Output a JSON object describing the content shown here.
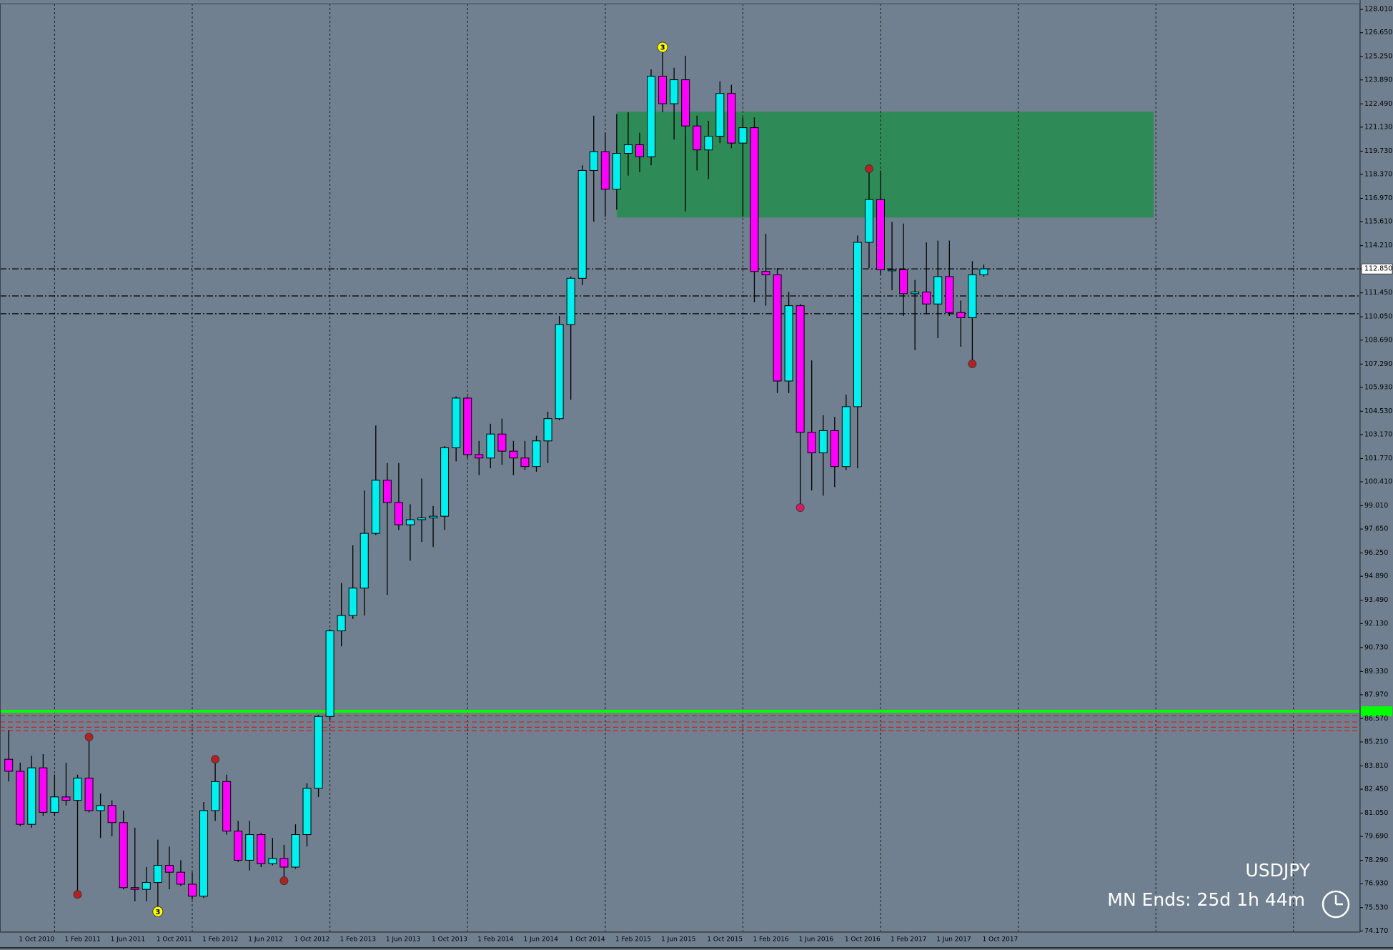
{
  "chart_data": {
    "type": "candlestick",
    "title": "USDJPY",
    "subtitle": "MN Ends: 25d 1h 44m",
    "x": [
      null,
      "1 Oct 2010",
      null,
      null,
      null,
      "1 Feb 2011",
      null,
      null,
      null,
      "1 Jun 2011",
      null,
      null,
      null,
      "1 Oct 2011",
      null,
      null,
      null,
      "1 Feb 2012",
      null,
      null,
      null,
      "1 Jun 2012",
      null,
      null,
      null,
      "1 Oct 2012",
      null,
      null,
      null,
      "1 Feb 2013",
      null,
      null,
      null,
      "1 Jun 2013",
      null,
      null,
      null,
      "1 Oct 2013",
      null,
      null,
      null,
      "1 Feb 2014",
      null,
      null,
      null,
      "1 Jun 2014",
      null,
      null,
      null,
      "1 Oct 2014",
      null,
      null,
      null,
      "1 Feb 2015",
      null,
      null,
      null,
      "1 Jun 2015",
      null,
      null,
      null,
      "1 Oct 2015",
      null,
      null,
      null,
      "1 Feb 2016",
      null,
      null,
      null,
      "1 Jun 2016",
      null,
      null,
      null,
      "1 Oct 2016",
      null,
      null,
      null,
      "1 Feb 2017",
      null,
      null,
      null,
      "1 Jun 2017",
      null,
      null,
      null,
      "1 Oct 2017"
    ],
    "open": [
      84.2,
      83.5,
      80.4,
      83.7,
      81.1,
      82.0,
      81.8,
      83.1,
      81.2,
      81.5,
      80.5,
      76.7,
      76.6,
      77.0,
      78.0,
      77.6,
      76.9,
      76.2,
      81.2,
      82.9,
      80.0,
      78.3,
      79.8,
      78.1,
      78.4,
      77.9,
      79.8,
      82.5,
      86.7,
      91.7,
      92.6,
      94.2,
      97.4,
      100.5,
      99.2,
      97.9,
      98.2,
      98.3,
      98.4,
      102.4,
      105.3,
      102.0,
      101.8,
      103.2,
      102.2,
      101.8,
      101.3,
      102.8,
      104.1,
      109.6,
      112.3,
      118.6,
      119.7,
      117.5,
      119.6,
      120.1,
      119.4,
      124.1,
      122.5,
      123.9,
      121.2,
      119.8,
      120.6,
      123.1,
      120.2,
      121.1,
      112.7,
      112.5,
      106.3,
      110.7,
      103.3,
      102.1,
      103.4,
      101.3,
      104.8,
      114.4,
      116.9,
      112.8,
      112.8,
      111.4,
      111.5,
      110.8,
      112.4,
      110.3,
      110.0,
      112.5
    ],
    "high": [
      85.9,
      84.0,
      84.4,
      84.5,
      83.3,
      84.0,
      83.3,
      85.5,
      82.2,
      81.8,
      81.2,
      80.2,
      77.9,
      79.5,
      79.1,
      78.3,
      77.6,
      81.7,
      84.2,
      83.3,
      80.6,
      80.6,
      79.9,
      79.6,
      79.2,
      80.4,
      82.8,
      86.8,
      91.8,
      94.5,
      96.7,
      99.9,
      103.7,
      101.5,
      101.5,
      99.1,
      100.6,
      99.0,
      102.5,
      105.4,
      105.4,
      102.8,
      103.8,
      104.1,
      102.8,
      102.8,
      103.1,
      104.5,
      110.1,
      112.4,
      118.9,
      121.8,
      120.8,
      121.9,
      122.0,
      120.8,
      124.5,
      125.8,
      124.6,
      125.3,
      121.8,
      121.5,
      123.8,
      123.6,
      121.7,
      121.7,
      114.9,
      112.9,
      111.5,
      110.8,
      107.5,
      104.3,
      104.2,
      105.5,
      114.8,
      118.7,
      118.6,
      115.6,
      115.5,
      112.2,
      114.4,
      114.5,
      114.5,
      111.0,
      113.3,
      113.1
    ],
    "low": [
      82.9,
      80.3,
      80.2,
      80.9,
      80.9,
      81.5,
      76.3,
      81.1,
      79.6,
      79.7,
      76.6,
      75.9,
      75.9,
      75.3,
      76.6,
      76.8,
      76.0,
      76.1,
      80.6,
      79.8,
      78.2,
      77.7,
      77.9,
      78.0,
      77.1,
      77.8,
      79.1,
      82.0,
      86.5,
      90.8,
      92.4,
      92.6,
      97.3,
      93.8,
      97.6,
      95.8,
      96.9,
      96.6,
      97.6,
      101.6,
      101.8,
      100.8,
      101.2,
      101.4,
      100.8,
      101.1,
      101.0,
      101.5,
      104.0,
      105.2,
      111.9,
      115.6,
      115.9,
      116.3,
      118.3,
      118.5,
      118.9,
      122.0,
      120.4,
      116.2,
      118.6,
      118.1,
      120.2,
      119.9,
      115.9,
      110.9,
      110.7,
      105.6,
      105.6,
      98.9,
      99.9,
      99.6,
      100.1,
      101.1,
      101.2,
      112.9,
      112.5,
      111.6,
      110.1,
      108.1,
      110.2,
      108.8,
      110.1,
      108.3,
      107.3,
      112.4
    ],
    "close": [
      83.5,
      80.4,
      83.7,
      81.1,
      82.0,
      81.8,
      83.1,
      81.2,
      81.5,
      80.5,
      76.7,
      76.6,
      77.0,
      78.0,
      77.6,
      76.9,
      76.2,
      81.2,
      82.9,
      80.0,
      78.3,
      79.8,
      78.1,
      78.4,
      77.9,
      79.8,
      82.5,
      86.7,
      91.7,
      92.6,
      94.2,
      97.4,
      100.5,
      99.2,
      97.9,
      98.2,
      98.3,
      98.4,
      102.4,
      105.3,
      102.0,
      101.8,
      103.2,
      102.2,
      101.8,
      101.3,
      102.8,
      104.1,
      109.6,
      112.3,
      118.6,
      119.7,
      117.5,
      119.6,
      120.1,
      119.4,
      124.1,
      122.5,
      123.9,
      121.2,
      119.8,
      120.6,
      123.1,
      120.2,
      121.1,
      112.7,
      112.5,
      106.3,
      110.7,
      103.3,
      102.1,
      103.4,
      101.3,
      104.8,
      114.4,
      116.9,
      112.8,
      112.8,
      111.4,
      111.5,
      110.8,
      112.4,
      110.3,
      110.0,
      112.5,
      112.85
    ],
    "up_color": "#00f0f0",
    "down_color": "#ff00ff",
    "ylim": [
      74.1,
      128.35
    ],
    "yticks": [
      {
        "value": 128.01,
        "label": "128.010"
      },
      {
        "value": 126.65,
        "label": "126.650"
      },
      {
        "value": 125.25,
        "label": "125.250"
      },
      {
        "value": 123.89,
        "label": "123.890"
      },
      {
        "value": 122.49,
        "label": "122.490"
      },
      {
        "value": 121.13,
        "label": "121.130"
      },
      {
        "value": 119.73,
        "label": "119.730"
      },
      {
        "value": 118.37,
        "label": "118.370"
      },
      {
        "value": 116.97,
        "label": "116.970"
      },
      {
        "value": 115.61,
        "label": "115.610"
      },
      {
        "value": 114.21,
        "label": "114.210"
      },
      {
        "value": 112.85,
        "label": "112.850"
      },
      {
        "value": 111.45,
        "label": "111.450"
      },
      {
        "value": 110.05,
        "label": "110.050"
      },
      {
        "value": 108.69,
        "label": "108.690"
      },
      {
        "value": 107.29,
        "label": "107.290"
      },
      {
        "value": 105.93,
        "label": "105.930"
      },
      {
        "value": 104.53,
        "label": "104.530"
      },
      {
        "value": 103.17,
        "label": "103.170"
      },
      {
        "value": 101.77,
        "label": "101.770"
      },
      {
        "value": 100.41,
        "label": "100.410"
      },
      {
        "value": 99.01,
        "label": "99.010"
      },
      {
        "value": 97.65,
        "label": "97.650"
      },
      {
        "value": 96.25,
        "label": "96.250"
      },
      {
        "value": 94.89,
        "label": "94.890"
      },
      {
        "value": 93.49,
        "label": "93.490"
      },
      {
        "value": 92.13,
        "label": "92.130"
      },
      {
        "value": 90.73,
        "label": "90.730"
      },
      {
        "value": 89.33,
        "label": "89.330"
      },
      {
        "value": 87.97,
        "label": "87.970"
      },
      {
        "value": 86.57,
        "label": "86.570"
      },
      {
        "value": 85.21,
        "label": "85.210"
      },
      {
        "value": 83.81,
        "label": "83.810"
      },
      {
        "value": 82.45,
        "label": "82.450"
      },
      {
        "value": 81.05,
        "label": "81.050"
      },
      {
        "value": 79.69,
        "label": "79.690"
      },
      {
        "value": 78.29,
        "label": "78.290"
      },
      {
        "value": 76.93,
        "label": "76.930"
      },
      {
        "value": 75.53,
        "label": "75.530"
      },
      {
        "value": 74.17,
        "label": "74.170"
      }
    ],
    "bid": 112.85,
    "zone": {
      "low": 115.85,
      "high": 122.03,
      "color": "#2e8b57"
    },
    "levels": [
      {
        "value": 87.0,
        "color": "#00ff00",
        "style": "solid"
      },
      {
        "value": 86.74,
        "color": "#cc2222",
        "style": "dashed"
      },
      {
        "value": 86.38,
        "color": "#cc2222",
        "style": "dashed"
      },
      {
        "value": 86.07,
        "color": "#cc2222",
        "style": "dashed"
      },
      {
        "value": 85.86,
        "color": "#cc2222",
        "style": "dashed"
      },
      {
        "value": 112.85,
        "color": "#000000",
        "style": "dashdot"
      },
      {
        "value": 111.27,
        "color": "#000000",
        "style": "dashdot"
      },
      {
        "value": 110.23,
        "color": "#000000",
        "style": "dashdot"
      }
    ],
    "markers": [
      {
        "candle": 6,
        "at": "low",
        "color": "#b22222"
      },
      {
        "candle": 7,
        "at": "high",
        "color": "#b22222"
      },
      {
        "candle": 13,
        "at": "low",
        "color": "#ffff00",
        "label": "3"
      },
      {
        "candle": 18,
        "at": "high",
        "color": "#b22222"
      },
      {
        "candle": 24,
        "at": "low",
        "color": "#b22222"
      },
      {
        "candle": 57,
        "at": "high",
        "color": "#ffff00",
        "label": "3"
      },
      {
        "candle": 69,
        "at": "low",
        "color": "#d81b60"
      },
      {
        "candle": 75,
        "at": "high",
        "color": "#b22222"
      },
      {
        "candle": 84,
        "at": "low",
        "color": "#b22222"
      }
    ]
  }
}
